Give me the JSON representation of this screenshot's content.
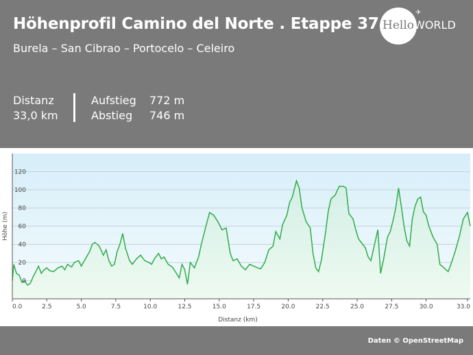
{
  "header": {
    "title": "Höhenprofil Camino del Norte . Etappe 37",
    "subtitle": "Burela – San Cibrao – Portocelo – Celeiro"
  },
  "logo": {
    "part1": "Hello",
    "part2": "WORLD"
  },
  "stats": {
    "distance_label": "Distanz",
    "distance_value": "33,0 km",
    "ascent_label": "Aufstieg",
    "ascent_value": "772 m",
    "descent_label": "Abstieg",
    "descent_value": "746 m"
  },
  "credit": "Daten © OpenStreetMap",
  "colors": {
    "line": "#2eab48",
    "fill_top": "#d8f0ec",
    "fill_bottom": "#f2fbf4",
    "plot_bg": "#e3f3fb"
  },
  "chart_data": {
    "type": "area",
    "xlabel": "Distanz (km)",
    "ylabel": "Höhe (m)",
    "xlim": [
      0,
      33.2
    ],
    "ylim": [
      -20,
      140
    ],
    "x_ticks": [
      "0.0",
      "2.5",
      "5.0",
      "7.5",
      "10.0",
      "12.5",
      "15.0",
      "17.5",
      "20.0",
      "22.5",
      "25.0",
      "27.5",
      "30.0",
      "33.0"
    ],
    "x_tick_values": [
      0,
      2.5,
      5,
      7.5,
      10,
      12.5,
      15,
      17.5,
      20,
      22.5,
      25,
      27.5,
      30,
      33
    ],
    "y_ticks": [
      "0",
      "20",
      "40",
      "60",
      "80",
      "100",
      "120"
    ],
    "y_tick_values": [
      0,
      20,
      40,
      60,
      80,
      100,
      120
    ],
    "grid": true,
    "x": [
      0,
      0.1,
      0.3,
      0.5,
      0.7,
      0.9,
      1.1,
      1.3,
      1.5,
      1.7,
      1.9,
      2.1,
      2.3,
      2.5,
      2.7,
      3.0,
      3.3,
      3.6,
      3.8,
      4.0,
      4.3,
      4.5,
      4.8,
      5.0,
      5.3,
      5.6,
      5.8,
      6.0,
      6.3,
      6.6,
      6.8,
      7.0,
      7.2,
      7.4,
      7.6,
      7.8,
      8.0,
      8.2,
      8.5,
      8.7,
      9.0,
      9.3,
      9.6,
      9.9,
      10.1,
      10.3,
      10.6,
      10.8,
      11.0,
      11.3,
      11.6,
      11.9,
      12.1,
      12.3,
      12.5,
      12.7,
      12.9,
      13.2,
      13.5,
      13.7,
      14.0,
      14.3,
      14.6,
      14.9,
      15.2,
      15.5,
      15.8,
      16.0,
      16.3,
      16.6,
      16.9,
      17.2,
      17.5,
      17.8,
      18.0,
      18.3,
      18.6,
      18.9,
      19.1,
      19.4,
      19.6,
      19.9,
      20.1,
      20.3,
      20.6,
      20.8,
      21.0,
      21.3,
      21.6,
      21.8,
      22.0,
      22.2,
      22.4,
      22.7,
      22.9,
      23.1,
      23.4,
      23.7,
      24.0,
      24.2,
      24.4,
      24.7,
      24.9,
      25.1,
      25.4,
      25.6,
      25.8,
      26.0,
      26.2,
      26.5,
      26.7,
      26.9,
      27.2,
      27.4,
      27.6,
      27.8,
      28.0,
      28.2,
      28.4,
      28.6,
      28.8,
      29.0,
      29.2,
      29.4,
      29.6,
      29.8,
      30.0,
      30.2,
      30.5,
      30.8,
      31.0,
      31.3,
      31.6,
      31.8,
      32.1,
      32.4,
      32.7,
      33.0,
      33.2
    ],
    "y": [
      0,
      18,
      8,
      6,
      -2,
      0,
      -5,
      -3,
      4,
      10,
      16,
      8,
      12,
      14,
      11,
      10,
      14,
      16,
      12,
      18,
      15,
      20,
      22,
      16,
      24,
      32,
      40,
      42,
      38,
      28,
      34,
      22,
      16,
      18,
      32,
      40,
      52,
      36,
      22,
      18,
      24,
      28,
      22,
      20,
      18,
      24,
      30,
      24,
      26,
      18,
      15,
      8,
      3,
      18,
      12,
      -4,
      20,
      14,
      26,
      40,
      58,
      75,
      72,
      65,
      56,
      58,
      30,
      22,
      24,
      16,
      12,
      18,
      16,
      14,
      13,
      20,
      34,
      38,
      54,
      46,
      62,
      72,
      86,
      92,
      110,
      102,
      80,
      65,
      58,
      30,
      14,
      10,
      22,
      52,
      76,
      90,
      94,
      104,
      104,
      102,
      74,
      68,
      56,
      46,
      40,
      36,
      26,
      22,
      36,
      56,
      8,
      22,
      48,
      54,
      66,
      80,
      102,
      82,
      60,
      44,
      38,
      68,
      82,
      90,
      92,
      76,
      72,
      60,
      48,
      40,
      18,
      14,
      10,
      18,
      32,
      48,
      68,
      75,
      60
    ]
  }
}
